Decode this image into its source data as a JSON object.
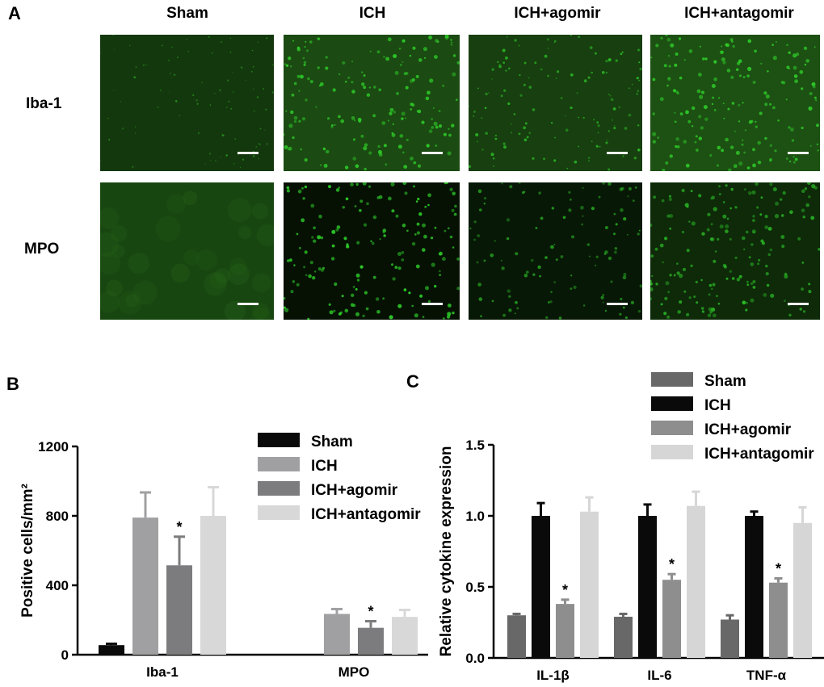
{
  "panel_a": {
    "letter": "A",
    "columns": [
      "Sham",
      "ICH",
      "ICH+agomir",
      "ICH+antagomir"
    ],
    "rows": [
      "Iba-1",
      "MPO"
    ],
    "image_color": "#2fd02a"
  },
  "chart_data": [
    {
      "type": "bar",
      "panel": "B",
      "ylabel": "Positive cells/mm²",
      "xlabel": "",
      "ylim": [
        0,
        1200
      ],
      "yticks": [
        0,
        400,
        800,
        1200
      ],
      "categories": [
        "Iba-1",
        "MPO"
      ],
      "legend_position": "top-right",
      "series": [
        {
          "name": "Sham",
          "color": "#0a0a0a",
          "values": [
            55,
            null
          ],
          "errors": [
            8,
            null
          ],
          "stars": [
            "",
            ""
          ]
        },
        {
          "name": "ICH",
          "color": "#a0a0a2",
          "values": [
            790,
            235
          ],
          "errors": [
            145,
            28
          ],
          "stars": [
            "",
            ""
          ]
        },
        {
          "name": "ICH+agomir",
          "color": "#7c7c7e",
          "values": [
            515,
            155
          ],
          "errors": [
            165,
            38
          ],
          "stars": [
            "*",
            "*"
          ]
        },
        {
          "name": "ICH+antagomir",
          "color": "#d8d8d8",
          "values": [
            800,
            218
          ],
          "errors": [
            165,
            40
          ],
          "stars": [
            "",
            ""
          ]
        }
      ]
    },
    {
      "type": "bar",
      "panel": "C",
      "ylabel": "Relative cytokine expression",
      "xlabel": "",
      "ylim": [
        0,
        1.5
      ],
      "yticks": [
        "0.0",
        "0.5",
        "1.0",
        "1.5"
      ],
      "categories": [
        "IL-1β",
        "IL-6",
        "TNF-α"
      ],
      "legend_position": "top",
      "series": [
        {
          "name": "Sham",
          "color": "#686868",
          "values": [
            0.3,
            0.29,
            0.27
          ],
          "errors": [
            0.01,
            0.02,
            0.03
          ],
          "stars": [
            "",
            "",
            ""
          ]
        },
        {
          "name": "ICH",
          "color": "#0a0a0a",
          "values": [
            1.0,
            1.0,
            1.0
          ],
          "errors": [
            0.09,
            0.08,
            0.03
          ],
          "stars": [
            "",
            "",
            ""
          ]
        },
        {
          "name": "ICH+agomir",
          "color": "#8e8e8e",
          "values": [
            0.38,
            0.55,
            0.53
          ],
          "errors": [
            0.03,
            0.04,
            0.03
          ],
          "stars": [
            "*",
            "*",
            "*"
          ]
        },
        {
          "name": "ICH+antagomir",
          "color": "#d6d6d6",
          "values": [
            1.03,
            1.07,
            0.95
          ],
          "errors": [
            0.1,
            0.1,
            0.11
          ],
          "stars": [
            "",
            "",
            ""
          ]
        }
      ]
    }
  ]
}
